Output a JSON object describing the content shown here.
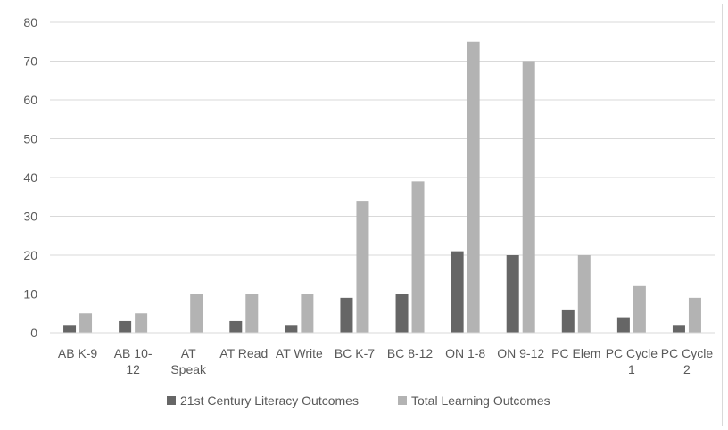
{
  "chart_data": {
    "type": "bar",
    "title": "",
    "xlabel": "",
    "ylabel": "",
    "ylim": [
      0,
      80
    ],
    "yticks": [
      0,
      10,
      20,
      30,
      40,
      50,
      60,
      70,
      80
    ],
    "grid": true,
    "legend_position": "bottom",
    "categories": [
      [
        "AB K-9"
      ],
      [
        "AB 10-",
        "12"
      ],
      [
        "AT",
        "Speak"
      ],
      [
        "AT Read"
      ],
      [
        "AT Write"
      ],
      [
        "BC K-7"
      ],
      [
        "BC 8-12"
      ],
      [
        "ON 1-8"
      ],
      [
        "ON 9-12"
      ],
      [
        "PC Elem"
      ],
      [
        "PC Cycle",
        "1"
      ],
      [
        "PC Cycle",
        "2"
      ]
    ],
    "series": [
      {
        "name": "21st Century Literacy Outcomes",
        "color": "#666666",
        "values": [
          2,
          3,
          0,
          3,
          2,
          9,
          10,
          21,
          20,
          6,
          4,
          2
        ]
      },
      {
        "name": "Total Learning Outcomes",
        "color": "#b3b3b3",
        "values": [
          5,
          5,
          10,
          10,
          10,
          34,
          39,
          75,
          70,
          20,
          12,
          9
        ]
      }
    ]
  }
}
